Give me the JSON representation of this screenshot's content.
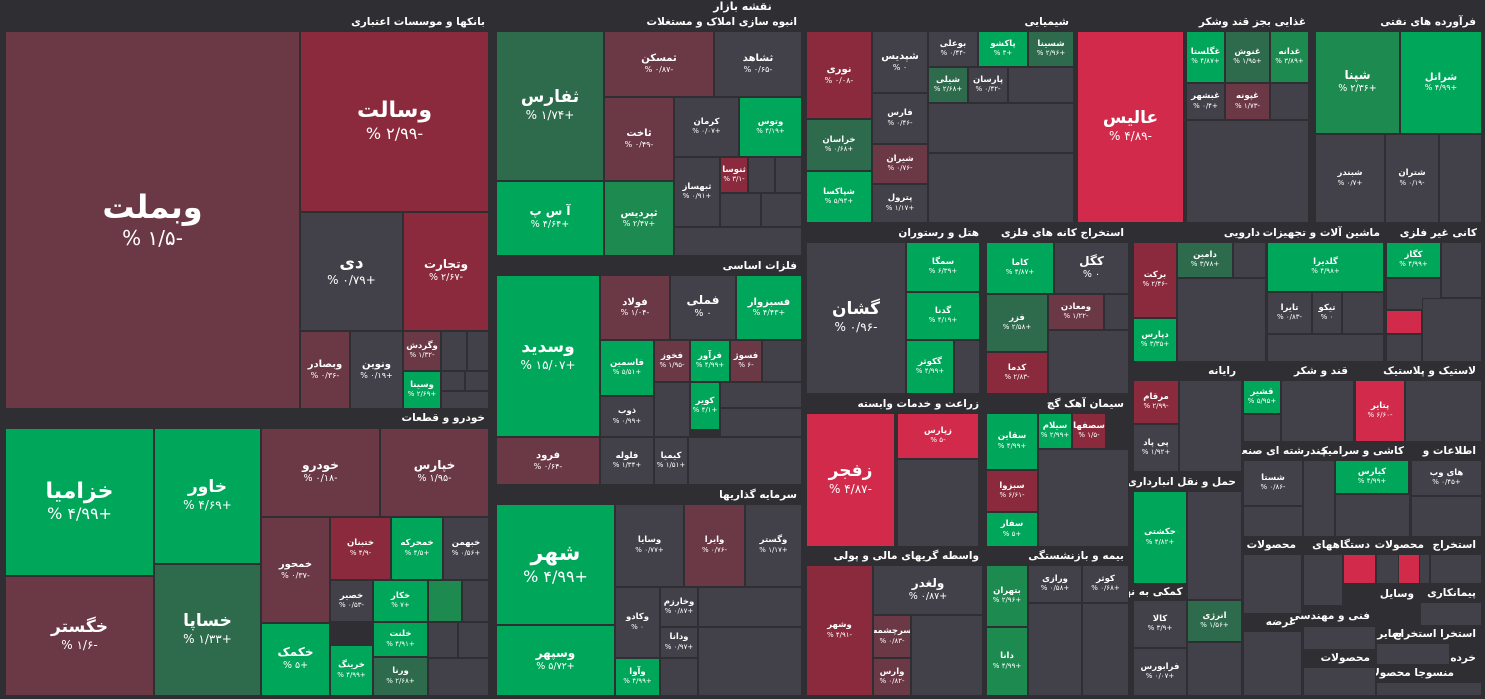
{
  "page_title": "نقشه بازار",
  "sectors": {
    "banks": "بانکها و موسسات اعتباری",
    "auto": "خودرو و قطعات",
    "realestate": "انبوه سازی املاک و مستغلات",
    "metals": "فلزات اساسی",
    "investment": "سرمایه گذاریها",
    "chemicals": "شیمیایی",
    "food": "غذایی بجز قند وشکر",
    "petroleum": "فرآورده های نفتی",
    "hotel": "هتل و رستوران",
    "mining": "استخراج کانه های فلزی",
    "pharma": "دارویی",
    "machinery": "ماشین آلات و تجهیزات",
    "nonmetal": "کانی غیر فلزی",
    "agri": "زراعت و خدمات وابسته",
    "cement": "سیمان آهک گچ",
    "it": "رایانه",
    "sugar": "قند و شکر",
    "rubber": "لاستیک و پلاستیک",
    "financial": "واسطه گریهای مالی و پولی",
    "insurance": "بیمه و بازنشستگی",
    "transport": "حمل و نقل انبارداری و",
    "tiles": "کاشی و سرامیک",
    "multi": "چندرشته ای صنعتی",
    "telecom": "اطلاعات و",
    "contracting": "فعالیتهای کمکی به نهاد",
    "products1": "محصولات",
    "devices": "دستگاههای",
    "products2": "محصولات",
    "extraction": "استخراج",
    "contractors": "پیمانکاری",
    "tech": "فنی و مهندسی",
    "vasayel": "وسایل",
    "products3": "محصولات",
    "offer": "عرضه",
    "saier": "سایر",
    "extraction2": "استخرا استخراج",
    "retail": "خرده",
    "textile": "منسوجا محصولا"
  },
  "tiles": [
    {
      "n": "وبملت",
      "p": "-۱/۵ %"
    },
    {
      "n": "وسالت",
      "p": "-۲/۹۹ %"
    },
    {
      "n": "دی",
      "p": "+۰/۷۹ %"
    },
    {
      "n": "وتجارت",
      "p": "-۲/۶۷ %"
    },
    {
      "n": "وبصادر",
      "p": "-۰/۳۶ %"
    },
    {
      "n": "ونوین",
      "p": "+۰/۱۹ %"
    },
    {
      "n": "وگردش",
      "p": "-۱/۳۲ %"
    },
    {
      "n": "وسینا",
      "p": "+۲/۶۹ %"
    },
    {
      "n": "خزامیا",
      "p": "+۴/۹۹ %"
    },
    {
      "n": "خاور",
      "p": "+۴/۶۹ %"
    },
    {
      "n": "خودرو",
      "p": "-۰/۱۸ %"
    },
    {
      "n": "خپارس",
      "p": "-۱/۹۵ %"
    },
    {
      "n": "خگستر",
      "p": "-۱/۶ %"
    },
    {
      "n": "خساپا",
      "p": "+۱/۳۳ %"
    },
    {
      "n": "خمحور",
      "p": "-۰/۳۷ %"
    },
    {
      "n": "ختبنان",
      "p": "-۴/۹ %"
    },
    {
      "n": "خمحرکه",
      "p": "+۴/۵ %"
    },
    {
      "n": "خبهمن",
      "p": "+۰/۵۶ %"
    },
    {
      "n": "خکمک",
      "p": "+۵ %"
    },
    {
      "n": "خصیر",
      "p": "-۰/۵۳ %"
    },
    {
      "n": "خکار",
      "p": "+۷ %"
    },
    {
      "n": "خلنت",
      "p": "+۴/۹۱ %"
    },
    {
      "n": "خرینگ",
      "p": "+۴/۹۹ %"
    },
    {
      "n": "ورنا",
      "p": "+۲/۶۸ %"
    },
    {
      "n": "ثفارس",
      "p": "+۱/۷۴ %"
    },
    {
      "n": "ثمسکن",
      "p": "-۰/۸۷ %"
    },
    {
      "n": "ثشاهد",
      "p": "-۰/۶۵ %"
    },
    {
      "n": "ثاخت",
      "p": "-۰/۴۹ %"
    },
    {
      "n": "کرمان",
      "p": "+۰/۰۷ %"
    },
    {
      "n": "وتوس",
      "p": "+۴/۱۹ %"
    },
    {
      "n": "ثنوسا",
      "p": "-۳/۱ %"
    },
    {
      "n": "ثبهساز",
      "p": "+۰/۹۱ %"
    },
    {
      "n": "آ س پ",
      "p": "+۴/۶۴ %"
    },
    {
      "n": "ثپردیس",
      "p": "+۲/۴۷ %"
    },
    {
      "n": "وسدید",
      "p": "+۱۵/۰۷ %"
    },
    {
      "n": "فولاد",
      "p": "-۱/۰۴ %"
    },
    {
      "n": "فملی",
      "p": "۰ %"
    },
    {
      "n": "فسبزوار",
      "p": "+۴/۴۳ %"
    },
    {
      "n": "فاسمین",
      "p": "+۵/۵۱ %"
    },
    {
      "n": "فخوز",
      "p": "-۱/۹۵ %"
    },
    {
      "n": "فرآور",
      "p": "+۴/۹۹ %"
    },
    {
      "n": "فسوژ",
      "p": "-۶ %"
    },
    {
      "n": "ذوب",
      "p": "+۰/۹۹ %"
    },
    {
      "n": "کویر",
      "p": "+۴/۱ %"
    },
    {
      "n": "فلوله",
      "p": "+۱/۳۴ %"
    },
    {
      "n": "کیمیا",
      "p": "+۱/۵۱ %"
    },
    {
      "n": "فرود",
      "p": "-۰/۶۴ %"
    },
    {
      "n": "شهر",
      "p": "+۴/۹۹ %"
    },
    {
      "n": "وسایا",
      "p": "+۰/۷۷ %"
    },
    {
      "n": "وایرا",
      "p": "-۰/۷۶ %"
    },
    {
      "n": "وگستر",
      "p": "+۱/۱۷ %"
    },
    {
      "n": "وکادو",
      "p": "۰ %"
    },
    {
      "n": "وخارزم",
      "p": "+۰/۸۷ %"
    },
    {
      "n": "ودانا",
      "p": "+۰/۹۷ %"
    },
    {
      "n": "وآوا",
      "p": "+۴/۹۹ %"
    },
    {
      "n": "وسپهر",
      "p": "+۵/۷۲ %"
    },
    {
      "n": "نوری",
      "p": "-۰/۰۸ %"
    },
    {
      "n": "شپدیس",
      "p": "۰ %"
    },
    {
      "n": "بوعلی",
      "p": "-۰/۴۴ %"
    },
    {
      "n": "پاکشو",
      "p": "+۴ %"
    },
    {
      "n": "شسینا",
      "p": "+۲/۹۶ %"
    },
    {
      "n": "شیلی",
      "p": "+۲/۶۸ %"
    },
    {
      "n": "پارسان",
      "p": "-۰/۴۲ %"
    },
    {
      "n": "فارس",
      "p": "-۰/۴۶ %"
    },
    {
      "n": "خراسان",
      "p": "+۰/۶۸ %"
    },
    {
      "n": "شیران",
      "p": "-۰/۷۶ %"
    },
    {
      "n": "شپاکسا",
      "p": "+۵/۹۴ %"
    },
    {
      "n": "پترول",
      "p": "+۱/۱۷ %"
    },
    {
      "n": "عالیس",
      "p": "-۴/۸۹ %"
    },
    {
      "n": "غگلستا",
      "p": "+۴/۸۷ %"
    },
    {
      "n": "غنوش",
      "p": "+۱/۹۵ %"
    },
    {
      "n": "غدانه",
      "p": "+۳/۸۹ %"
    },
    {
      "n": "غبشهر",
      "p": "+۰/۴ %"
    },
    {
      "n": "غپونه",
      "p": "-۱/۷۳ %"
    },
    {
      "n": "شپنا",
      "p": "+۲/۳۶ %"
    },
    {
      "n": "شرانل",
      "p": "+۴/۹۹ %"
    },
    {
      "n": "شبندر",
      "p": "+۰/۷ %"
    },
    {
      "n": "شتران",
      "p": "-۰/۱۹ %"
    },
    {
      "n": "گشان",
      "p": "-۰/۹۶ %"
    },
    {
      "n": "سمگا",
      "p": "+۶/۳۹ %"
    },
    {
      "n": "گدنا",
      "p": "+۴/۱۹ %"
    },
    {
      "n": "گکوثر",
      "p": "+۴/۹۹ %"
    },
    {
      "n": "کاما",
      "p": "+۴/۸۷ %"
    },
    {
      "n": "کگل",
      "p": "۰ %"
    },
    {
      "n": "فزر",
      "p": "+۲/۵۸ %"
    },
    {
      "n": "ومعادن",
      "p": "-۱/۲۲ %"
    },
    {
      "n": "کدما",
      "p": "-۲/۸۳ %"
    },
    {
      "n": "برکت",
      "p": "-۲/۴۶ %"
    },
    {
      "n": "دامین",
      "p": "+۳/۷۸ %"
    },
    {
      "n": "دپارس",
      "p": "+۳/۳۵ %"
    },
    {
      "n": "گلدیرا",
      "p": "+۴/۹۸ %"
    },
    {
      "n": "تایرا",
      "p": "-۰/۸۳ %"
    },
    {
      "n": "تیکو",
      "p": "۰ %"
    },
    {
      "n": "کگاز",
      "p": "+۴/۹۹ %"
    },
    {
      "n": "زفجر",
      "p": "-۴/۸۷ %"
    },
    {
      "n": "زپارس",
      "p": "-۵ %"
    },
    {
      "n": "سقاین",
      "p": "+۴/۹۹ %"
    },
    {
      "n": "سیلام",
      "p": "+۲/۹۹ %"
    },
    {
      "n": "سصفها",
      "p": "-۱/۵ %"
    },
    {
      "n": "سبزوا",
      "p": "-۶/۶۱ %"
    },
    {
      "n": "سفار",
      "p": "+۵ %"
    },
    {
      "n": "مرقام",
      "p": "-۲/۹۹ %"
    },
    {
      "n": "پی پاد",
      "p": "+۱/۹۲ %"
    },
    {
      "n": "قشیر",
      "p": "+۵/۹۵ %"
    },
    {
      "n": "پتایر",
      "p": "-۶/۶۰ %"
    },
    {
      "n": "شستا",
      "p": "-۰/۸۶ %"
    },
    {
      "n": "کیارس",
      "p": "+۴/۹۹ %"
    },
    {
      "n": "های وب",
      "p": "+۰/۴۵ %"
    },
    {
      "n": "ولغدر",
      "p": "+۰/۸۷ %"
    },
    {
      "n": "وشهر",
      "p": "-۴/۹۱ %"
    },
    {
      "n": "سرچشمه",
      "p": "-۰/۸۳ %"
    },
    {
      "n": "وارس",
      "p": "-۰/۸۲ %"
    },
    {
      "n": "بتهران",
      "p": "+۲/۹۶ %"
    },
    {
      "n": "ورازی",
      "p": "+۰/۵۸ %"
    },
    {
      "n": "کوثر",
      "p": "+۰/۶۸ %"
    },
    {
      "n": "دانا",
      "p": "+۴/۹۹ %"
    },
    {
      "n": "حکشتی",
      "p": "+۴/۸۲ %"
    },
    {
      "n": "کالا",
      "p": "+۳/۹ %"
    },
    {
      "n": "انرژی",
      "p": "+۱/۵۶ %"
    },
    {
      "n": "فرابورس",
      "p": "+۰/۰۷ %"
    }
  ]
}
